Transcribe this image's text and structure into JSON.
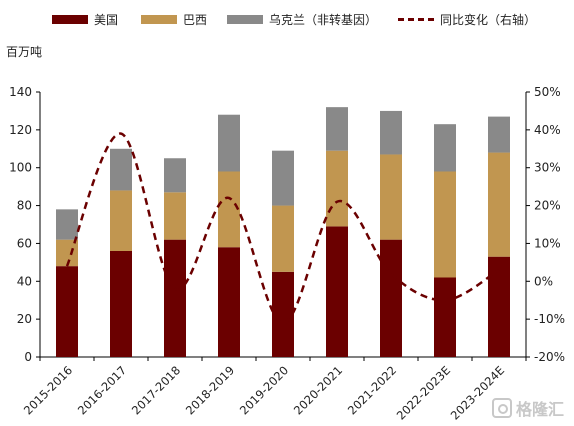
{
  "legend": {
    "us": "美国",
    "brazil": "巴西",
    "ukraine": "乌克兰（非转基因）",
    "yoy": "同比变化（右轴）"
  },
  "unit_label": "百万吨",
  "watermark": "格隆汇",
  "colors": {
    "us": "#6b0000",
    "brazil": "#c19650",
    "ukraine": "#898989",
    "yoy": "#6b0000"
  },
  "chart_data": {
    "type": "bar",
    "stacked": true,
    "categories": [
      "2015-2016",
      "2016-2017",
      "2017-2018",
      "2018-2019",
      "2019-2020",
      "2020-2021",
      "2021-2022",
      "2022-2023E",
      "2023-2024E"
    ],
    "series": [
      {
        "name": "美国",
        "values": [
          48,
          56,
          62,
          58,
          45,
          69,
          62,
          42,
          53
        ]
      },
      {
        "name": "巴西",
        "values": [
          14,
          32,
          25,
          40,
          35,
          40,
          45,
          56,
          55
        ]
      },
      {
        "name": "乌克兰（非转基因）",
        "values": [
          16,
          22,
          18,
          30,
          29,
          23,
          23,
          25,
          19
        ]
      }
    ],
    "line_series": {
      "name": "同比变化（右轴）",
      "axis": "right",
      "values": [
        4,
        39,
        -2,
        22,
        -11,
        21,
        2,
        -5,
        3
      ]
    },
    "y_left": {
      "min": 0,
      "max": 140,
      "ticks": [
        "0",
        "20",
        "40",
        "60",
        "80",
        "100",
        "120",
        "140"
      ]
    },
    "y_right": {
      "min": -20,
      "max": 50,
      "ticks": [
        "-20%",
        "-10%",
        "0%",
        "10%",
        "20%",
        "30%",
        "40%",
        "50%"
      ]
    },
    "grid": false,
    "legend_position": "top"
  }
}
